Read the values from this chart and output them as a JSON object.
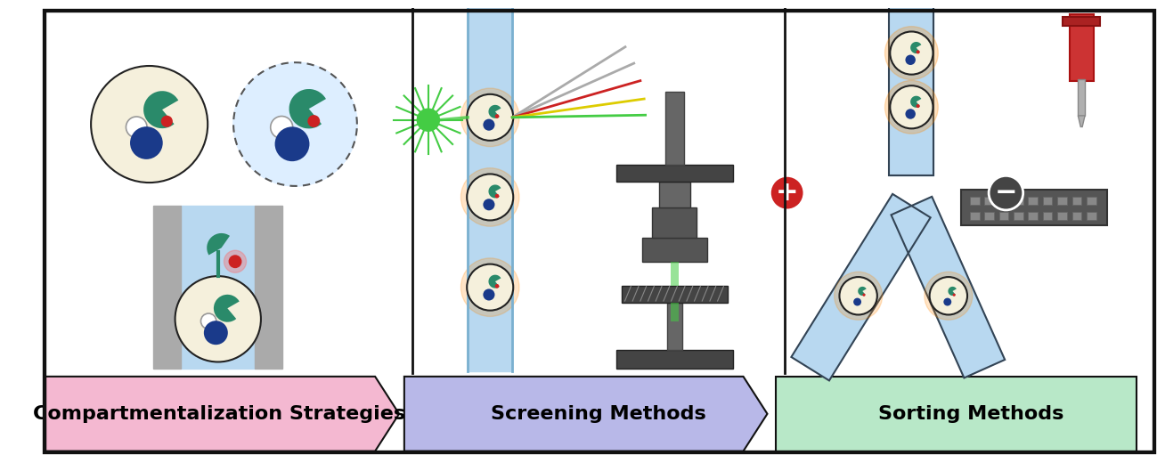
{
  "panel1_label": "Compartmentalization Strategies",
  "panel2_label": "Screening Methods",
  "panel3_label": "Sorting Methods",
  "panel1_color": "#f4b8d1",
  "panel2_color": "#b8b8e8",
  "panel3_color": "#b8e8c8",
  "bg_color": "#ffffff",
  "border_color": "#111111",
  "label_fontsize": 16,
  "cell_cream": "#f5f0dc",
  "cell_border": "#222222",
  "blue_organelle": "#1a3a8a",
  "teal_organelle": "#2a8a6a",
  "red_dot": "#cc2222",
  "channel_blue": "#b8d8f0",
  "laser_green": "#44cc44",
  "glow_orange": "#ff8800",
  "plus_red": "#cc2222"
}
